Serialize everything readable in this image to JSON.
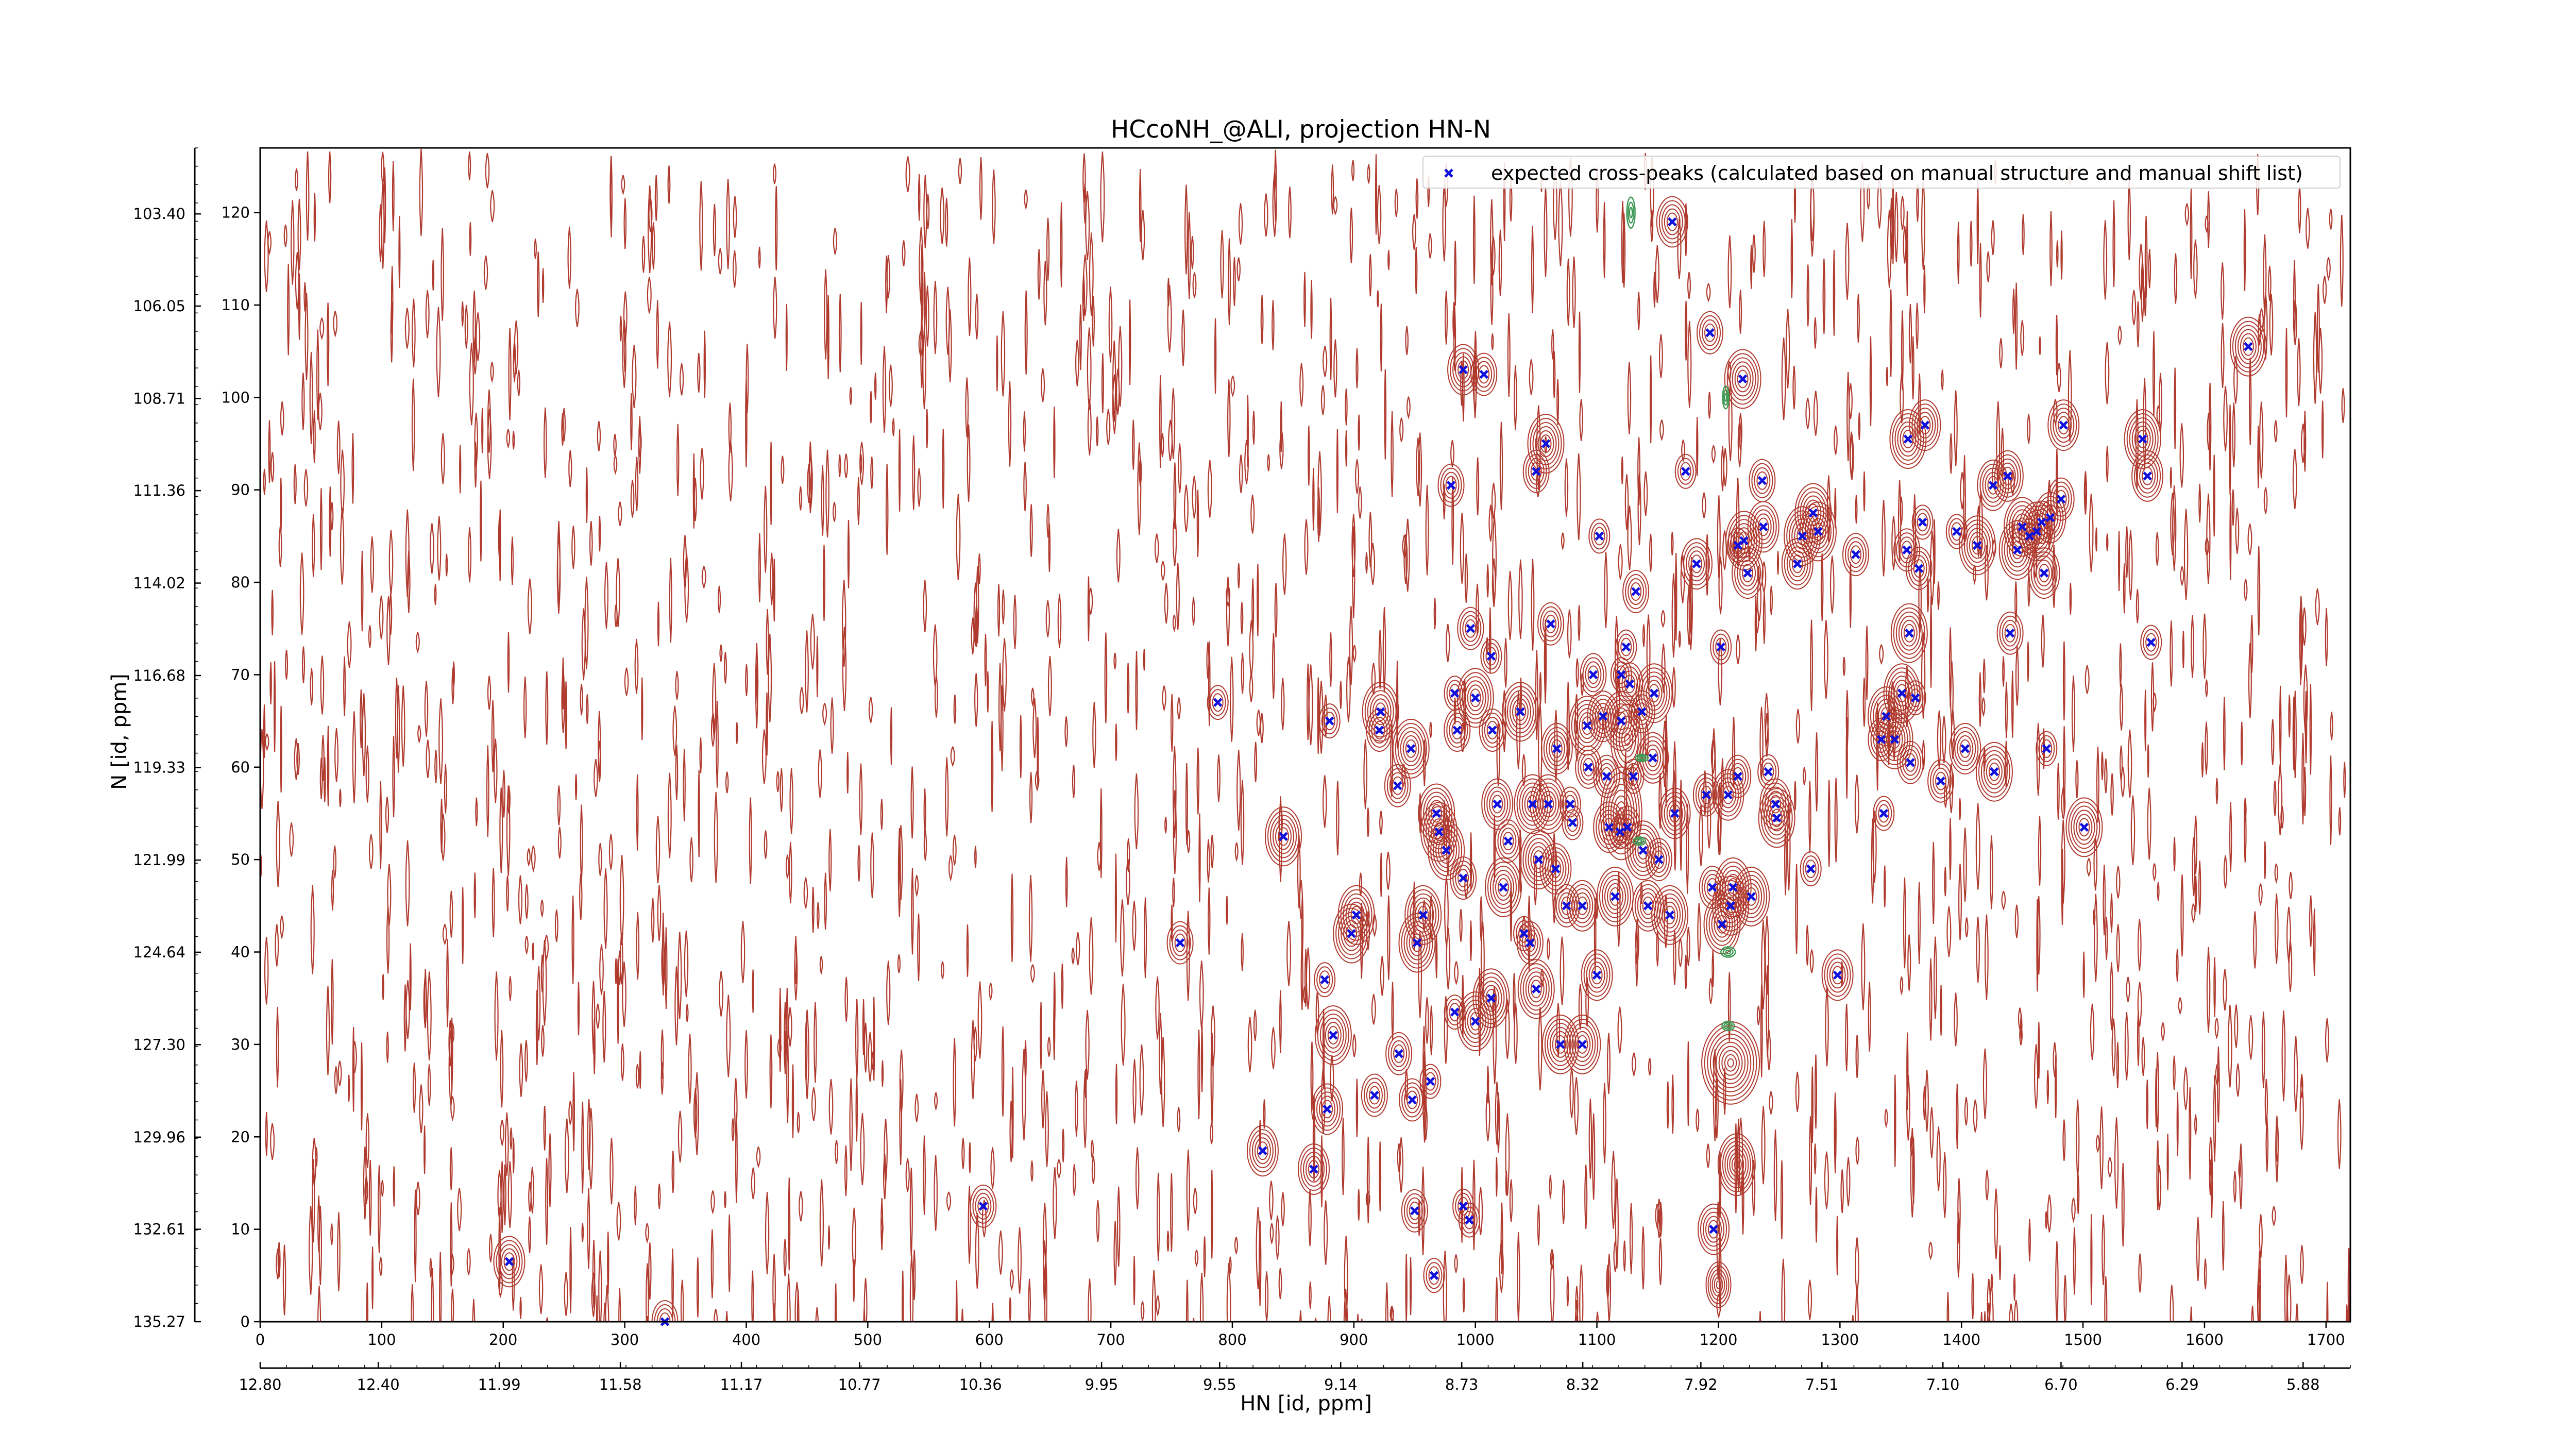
{
  "chart_data": {
    "type": "scatter",
    "title": "HCcoNH_@ALI, projection HN-N",
    "xlabel": "HN [id, ppm]",
    "ylabel": "N [id, ppm]",
    "x_index": {
      "range": [
        0,
        1720
      ],
      "ticks": [
        "0",
        "100",
        "200",
        "300",
        "400",
        "500",
        "600",
        "700",
        "800",
        "900",
        "1000",
        "1100",
        "1200",
        "1300",
        "1400",
        "1500",
        "1600",
        "1700"
      ]
    },
    "y_index": {
      "range": [
        0,
        127
      ],
      "ticks": [
        "0",
        "10",
        "20",
        "30",
        "40",
        "50",
        "60",
        "70",
        "80",
        "90",
        "100",
        "110",
        "120"
      ]
    },
    "x_ppm": {
      "range": [
        12.8,
        5.72
      ],
      "ticks": [
        "12.80",
        "12.40",
        "11.99",
        "11.58",
        "11.17",
        "10.77",
        "10.36",
        "9.95",
        "9.55",
        "9.14",
        "8.73",
        "8.32",
        "7.92",
        "7.51",
        "7.10",
        "6.70",
        "6.29",
        "5.88"
      ]
    },
    "y_ppm": {
      "range": [
        135.27,
        101.5
      ],
      "ticks": [
        "135.27",
        "132.61",
        "129.96",
        "127.30",
        "124.64",
        "121.99",
        "119.33",
        "116.68",
        "114.02",
        "111.36",
        "108.71",
        "106.05",
        "103.40"
      ]
    },
    "legend": {
      "position": "top-right",
      "label": "expected cross-peaks (calculated based on manual structure and manual shift list)"
    },
    "colors": {
      "contour_positive": "#b03a2e",
      "contour_negative": "#3f9a55",
      "marker": "#1010dd"
    },
    "series": [
      {
        "name": "expected cross-peaks (calculated based on manual structure and manual shift list)",
        "marker": "x",
        "points": [
          [
            205,
            6.5
          ],
          [
            333,
            0
          ],
          [
            595,
            12.5
          ],
          [
            757,
            41
          ],
          [
            788,
            67
          ],
          [
            842,
            52.5
          ],
          [
            825,
            18.5
          ],
          [
            867,
            16.5
          ],
          [
            878,
            23
          ],
          [
            876,
            37
          ],
          [
            883,
            31
          ],
          [
            880,
            65
          ],
          [
            898,
            42
          ],
          [
            902,
            44
          ],
          [
            917,
            24.5
          ],
          [
            937,
            29
          ],
          [
            921,
            64
          ],
          [
            922,
            66
          ],
          [
            936,
            58
          ],
          [
            947,
            62
          ],
          [
            948,
            24
          ],
          [
            952,
            41
          ],
          [
            957,
            44
          ],
          [
            950,
            12
          ],
          [
            963,
            26
          ],
          [
            966,
            5
          ],
          [
            968,
            55
          ],
          [
            970,
            53
          ],
          [
            976,
            51
          ],
          [
            983,
            33.5
          ],
          [
            980,
            90.5
          ],
          [
            983,
            68
          ],
          [
            985,
            64
          ],
          [
            990,
            48
          ],
          [
            990,
            12.5
          ],
          [
            995,
            11
          ],
          [
            990,
            103
          ],
          [
            996,
            75
          ],
          [
            1000,
            32.5
          ],
          [
            1000,
            67.5
          ],
          [
            1007,
            102.5
          ],
          [
            1013,
            35
          ],
          [
            1013,
            72
          ],
          [
            1014,
            64
          ],
          [
            1018,
            56
          ],
          [
            1023,
            47
          ],
          [
            1027,
            52
          ],
          [
            1037,
            66
          ],
          [
            1040,
            42
          ],
          [
            1045,
            41
          ],
          [
            1047,
            56
          ],
          [
            1050,
            36
          ],
          [
            1050,
            92
          ],
          [
            1052,
            50
          ],
          [
            1058,
            95
          ],
          [
            1060,
            56
          ],
          [
            1062,
            75.5
          ],
          [
            1066,
            49
          ],
          [
            1067,
            62
          ],
          [
            1070,
            30
          ],
          [
            1075,
            45
          ],
          [
            1078,
            56
          ],
          [
            1080,
            54
          ],
          [
            1088,
            45
          ],
          [
            1088,
            30
          ],
          [
            1092,
            64.5
          ],
          [
            1093,
            60
          ],
          [
            1097,
            70
          ],
          [
            1100,
            37.5
          ],
          [
            1102,
            85
          ],
          [
            1105,
            65.5
          ],
          [
            1108,
            59
          ],
          [
            1110,
            53.5
          ],
          [
            1115,
            46
          ],
          [
            1119,
            53
          ],
          [
            1120,
            65
          ],
          [
            1120,
            70
          ],
          [
            1124,
            73
          ],
          [
            1125,
            53.5
          ],
          [
            1127,
            69
          ],
          [
            1130,
            59
          ],
          [
            1132,
            79
          ],
          [
            1137,
            66
          ],
          [
            1138,
            51
          ],
          [
            1142,
            45
          ],
          [
            1146,
            61
          ],
          [
            1147,
            68
          ],
          [
            1151,
            50
          ],
          [
            1160,
            44
          ],
          [
            1162,
            119
          ],
          [
            1164,
            55
          ],
          [
            1173,
            92
          ],
          [
            1182,
            82
          ],
          [
            1190,
            57
          ],
          [
            1193,
            107
          ],
          [
            1195,
            47
          ],
          [
            1196,
            10
          ],
          [
            1202,
            73
          ],
          [
            1203,
            43
          ],
          [
            1208,
            57
          ],
          [
            1210,
            45
          ],
          [
            1212,
            47
          ],
          [
            1216,
            59
          ],
          [
            1216,
            84
          ],
          [
            1220,
            102
          ],
          [
            1221,
            84.5
          ],
          [
            1224,
            81
          ],
          [
            1227,
            46
          ],
          [
            1236,
            91
          ],
          [
            1237,
            86
          ],
          [
            1241,
            59.5
          ],
          [
            1247,
            56
          ],
          [
            1248,
            54.5
          ],
          [
            1265,
            82
          ],
          [
            1269,
            85
          ],
          [
            1276,
            49
          ],
          [
            1278,
            87.5
          ],
          [
            1282,
            85.5
          ],
          [
            1298,
            37.5
          ],
          [
            1313,
            83
          ],
          [
            1334,
            63
          ],
          [
            1336,
            55
          ],
          [
            1338,
            65.5
          ],
          [
            1345,
            63
          ],
          [
            1351,
            68
          ],
          [
            1355,
            83.5
          ],
          [
            1356,
            95.5
          ],
          [
            1357,
            74.5
          ],
          [
            1358,
            60.5
          ],
          [
            1362,
            67.5
          ],
          [
            1365,
            81.5
          ],
          [
            1368,
            86.5
          ],
          [
            1370,
            97
          ],
          [
            1383,
            58.5
          ],
          [
            1396,
            85.5
          ],
          [
            1403,
            62
          ],
          [
            1413,
            84
          ],
          [
            1426,
            90.5
          ],
          [
            1427,
            59.5
          ],
          [
            1438,
            91.5
          ],
          [
            1440,
            74.5
          ],
          [
            1446,
            83.5
          ],
          [
            1450,
            86
          ],
          [
            1456,
            85
          ],
          [
            1462,
            85.5
          ],
          [
            1466,
            86.5
          ],
          [
            1468,
            81
          ],
          [
            1470,
            62
          ],
          [
            1473,
            87
          ],
          [
            1482,
            89
          ],
          [
            1484,
            97
          ],
          [
            1501,
            53.5
          ],
          [
            1549,
            95.5
          ],
          [
            1553,
            91.5
          ],
          [
            1556,
            73.5
          ],
          [
            1636,
            105.5
          ]
        ]
      }
    ]
  }
}
